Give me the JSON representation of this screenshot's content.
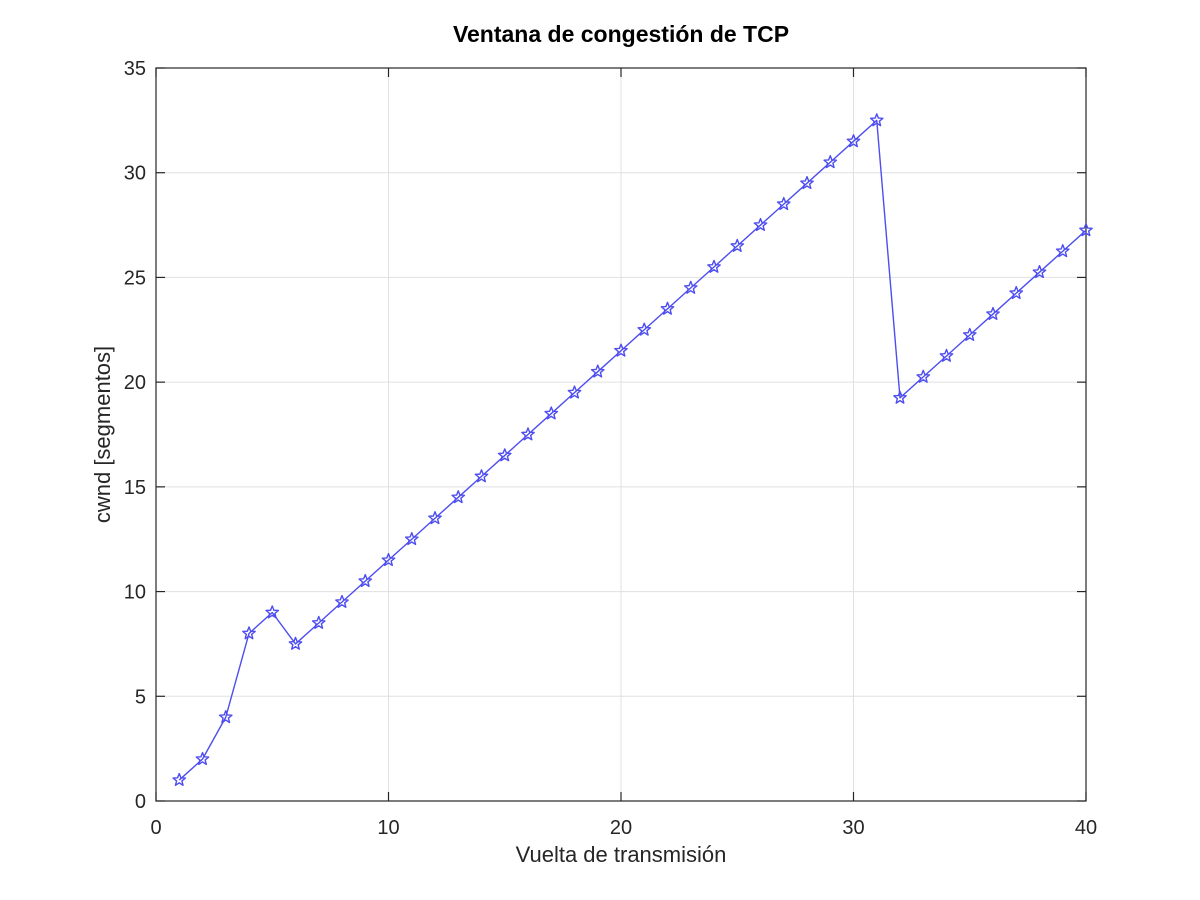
{
  "chart_data": {
    "type": "line",
    "title": "Ventana de congestión de TCP",
    "xlabel": "Vuelta de transmisión",
    "ylabel": "cwnd [segmentos]",
    "xlim": [
      0,
      40
    ],
    "ylim": [
      0,
      35
    ],
    "xticks": [
      0,
      10,
      20,
      30,
      40
    ],
    "yticks": [
      0,
      5,
      10,
      15,
      20,
      25,
      30,
      35
    ],
    "grid": true,
    "legend": "none",
    "series": [
      {
        "color": "#4d4df0",
        "marker": "star",
        "x": [
          1,
          2,
          3,
          4,
          5,
          6,
          7,
          8,
          9,
          10,
          11,
          12,
          13,
          14,
          15,
          16,
          17,
          18,
          19,
          20,
          21,
          22,
          23,
          24,
          25,
          26,
          27,
          28,
          29,
          30,
          31,
          32,
          33,
          34,
          35,
          36,
          37,
          38,
          39,
          40
        ],
        "y": [
          1,
          2,
          4,
          8,
          9,
          7.5,
          8.5,
          9.5,
          10.5,
          11.5,
          12.5,
          13.5,
          14.5,
          15.5,
          16.5,
          17.5,
          18.5,
          19.5,
          20.5,
          21.5,
          22.5,
          23.5,
          24.5,
          25.5,
          26.5,
          27.5,
          28.5,
          29.5,
          30.5,
          31.5,
          32.5,
          19.25,
          20.25,
          21.25,
          22.25,
          23.25,
          24.25,
          25.25,
          26.25,
          27.25
        ]
      }
    ]
  }
}
